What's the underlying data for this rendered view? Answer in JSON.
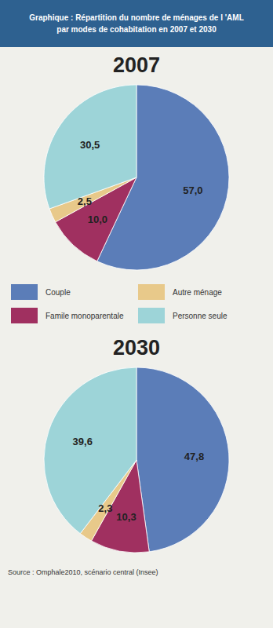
{
  "title": "Graphique : Répartition du nombre de ménages de l 'AML\npar modes de cohabitation en 2007 et 2030",
  "source": "Source : Omphale2010, scénario central (Insee)",
  "chart_data": [
    {
      "type": "pie",
      "title": "2007",
      "categories": [
        "Couple",
        "Famile monoparentale",
        "Autre ménage",
        "Personne seule"
      ],
      "values": [
        57.0,
        10.0,
        2.5,
        30.5
      ],
      "value_labels": [
        "57,0",
        "10,0",
        "2,5",
        "30,5"
      ],
      "colors": [
        "#5B7DB8",
        "#A03060",
        "#E8C98A",
        "#9DD4D8"
      ],
      "data_labels": true,
      "legend": "bottom"
    },
    {
      "type": "pie",
      "title": "2030",
      "categories": [
        "Couple",
        "Famile monoparentale",
        "Autre ménage",
        "Personne seule"
      ],
      "values": [
        47.8,
        10.3,
        2.3,
        39.6
      ],
      "value_labels": [
        "47,8",
        "10,3",
        "2,3",
        "39,6"
      ],
      "colors": [
        "#5B7DB8",
        "#A03060",
        "#E8C98A",
        "#9DD4D8"
      ],
      "data_labels": true
    }
  ]
}
